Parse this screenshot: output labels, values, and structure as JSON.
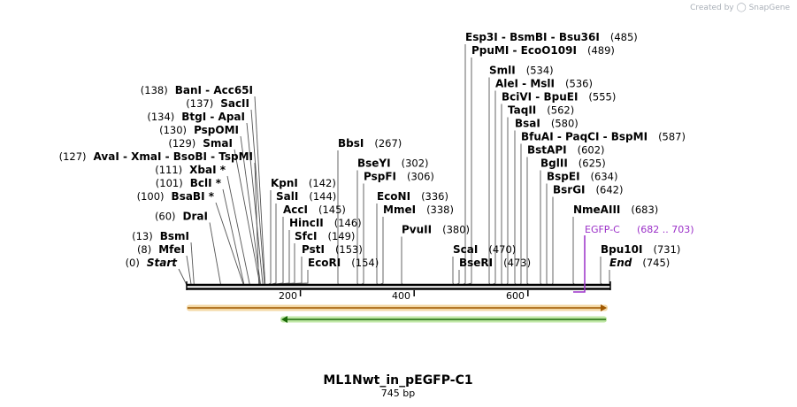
{
  "credit": {
    "prefix": "Created by",
    "brand": "SnapGene"
  },
  "title": "ML1Nwt_in_pEGFP-C1",
  "length_label": "745 bp",
  "ruler": {
    "ticks": [
      "200",
      "400",
      "600"
    ]
  },
  "feature": {
    "name": "EGFP-C",
    "range": "(682 .. 703)"
  },
  "sites": [
    {
      "pos": "(0)",
      "name": "Start",
      "italic": true
    },
    {
      "pos": "(8)",
      "name": "MfeI"
    },
    {
      "pos": "(13)",
      "name": "BsmI"
    },
    {
      "pos": "(60)",
      "name": "DraI"
    },
    {
      "pos": "(100)",
      "name": "BsaBI *"
    },
    {
      "pos": "(101)",
      "name": "BclI *"
    },
    {
      "pos": "(111)",
      "name": "XbaI *"
    },
    {
      "pos": "(127)",
      "names": [
        "AvaI",
        "XmaI",
        "BsoBI",
        "TspMI"
      ]
    },
    {
      "pos": "(129)",
      "name": "SmaI"
    },
    {
      "pos": "(130)",
      "name": "PspOMI"
    },
    {
      "pos": "(134)",
      "names": [
        "BtgI",
        "ApaI"
      ]
    },
    {
      "pos": "(137)",
      "name": "SacII"
    },
    {
      "pos": "(138)",
      "names": [
        "BanI",
        "Acc65I"
      ]
    },
    {
      "name": "KpnI",
      "pos": "(142)"
    },
    {
      "name": "SalI",
      "pos": "(144)"
    },
    {
      "name": "AccI",
      "pos": "(145)"
    },
    {
      "name": "HincII",
      "pos": "(146)"
    },
    {
      "name": "SfcI",
      "pos": "(149)"
    },
    {
      "name": "PstI",
      "pos": "(153)"
    },
    {
      "name": "EcoRI",
      "pos": "(154)"
    },
    {
      "name": "BbsI",
      "pos": "(267)"
    },
    {
      "name": "BseYI",
      "pos": "(302)"
    },
    {
      "name": "PspFI",
      "pos": "(306)"
    },
    {
      "name": "EcoNI",
      "pos": "(336)"
    },
    {
      "name": "MmeI",
      "pos": "(338)"
    },
    {
      "name": "PvuII",
      "pos": "(380)"
    },
    {
      "name": "ScaI",
      "pos": "(470)"
    },
    {
      "name": "BseRI",
      "pos": "(473)"
    },
    {
      "names": [
        "Esp3I",
        "BsmBI",
        "Bsu36I"
      ],
      "pos": "(485)"
    },
    {
      "names": [
        "PpuMI",
        "EcoO109I"
      ],
      "pos": "(489)"
    },
    {
      "name": "SmlI",
      "pos": "(534)"
    },
    {
      "names": [
        "AleI",
        "MslI"
      ],
      "pos": "(536)"
    },
    {
      "names": [
        "BciVI",
        "BpuEI"
      ],
      "pos": "(555)"
    },
    {
      "name": "TaqII",
      "pos": "(562)"
    },
    {
      "name": "BsaI",
      "pos": "(580)"
    },
    {
      "names": [
        "BfuAI",
        "PaqCI",
        "BspMI"
      ],
      "pos": "(587)"
    },
    {
      "name": "BstAPI",
      "pos": "(602)"
    },
    {
      "name": "BglII",
      "pos": "(625)"
    },
    {
      "name": "BspEI",
      "pos": "(634)"
    },
    {
      "name": "BsrGI",
      "pos": "(642)"
    },
    {
      "name": "NmeAIII",
      "pos": "(683)"
    },
    {
      "name": "Bpu10I",
      "pos": "(731)"
    },
    {
      "name": "End",
      "pos": "(745)",
      "italic": true
    }
  ]
}
